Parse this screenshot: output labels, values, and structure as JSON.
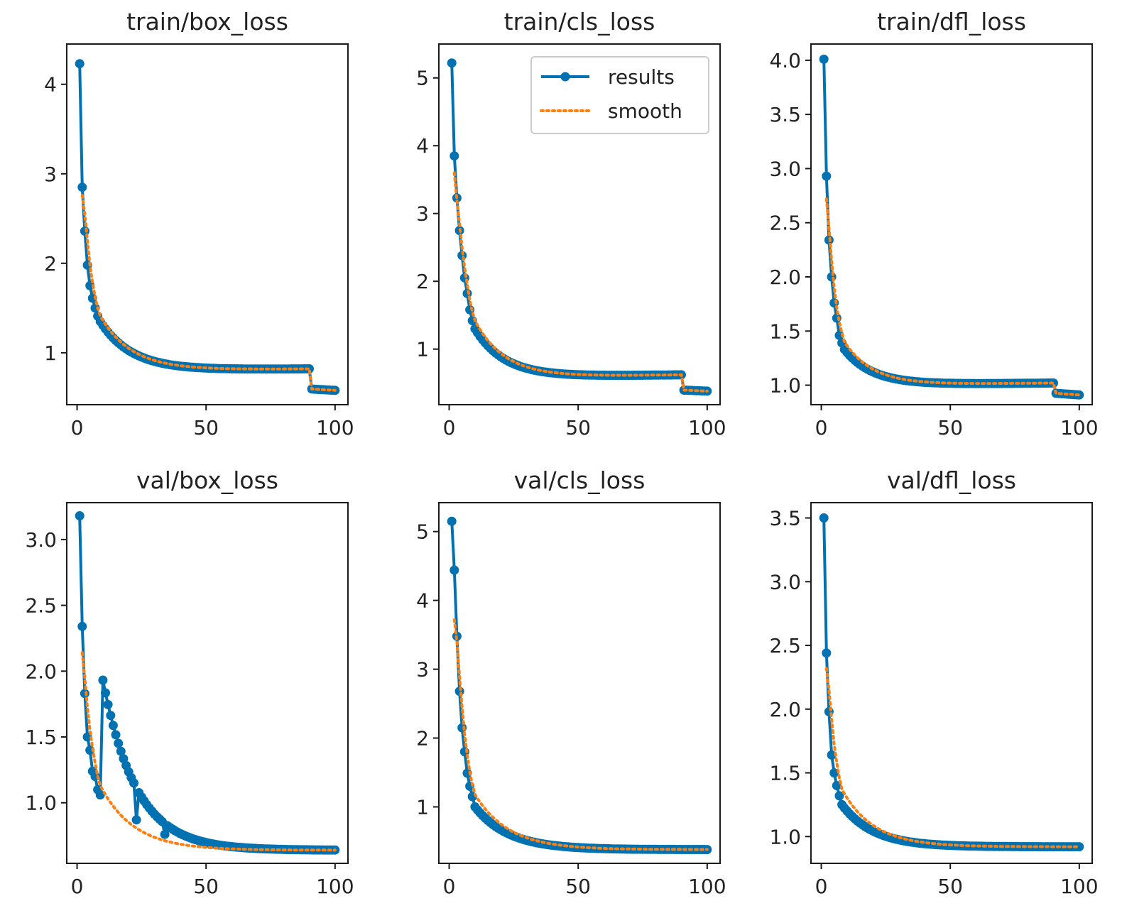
{
  "colors": {
    "results": "#0072b2",
    "smooth": "#ff7f0e"
  },
  "legend": {
    "labels": [
      "results",
      "smooth"
    ],
    "placement": "upper-right of train/cls_loss"
  },
  "chart_data": [
    {
      "type": "line",
      "title": "train/box_loss",
      "xlim": [
        -4,
        105
      ],
      "ylim": [
        0.42,
        4.45
      ],
      "xticks": [
        0,
        50,
        100
      ],
      "xtick_labels": [
        "0",
        "50",
        "100"
      ],
      "yticks": [
        1,
        2,
        3,
        4
      ],
      "ytick_labels": [
        "1",
        "2",
        "3",
        "4"
      ],
      "series": [
        {
          "name": "results",
          "x_start": 1,
          "x_end": 100,
          "start": 4.23,
          "end": 0.82,
          "plateau": 0.8,
          "k": 0.08,
          "drop_at": 91,
          "drop_to": 0.58,
          "anchors": [
            [
              1,
              4.23
            ],
            [
              2,
              2.85
            ],
            [
              3,
              2.36
            ],
            [
              4,
              1.98
            ],
            [
              5,
              1.75
            ],
            [
              6,
              1.61
            ],
            [
              7,
              1.5
            ],
            [
              8,
              1.41
            ],
            [
              9,
              1.35
            ]
          ]
        },
        {
          "name": "smooth",
          "x_start": 2,
          "x_end": 100,
          "start": 2.76,
          "end": 0.82,
          "plateau": 0.8,
          "k": 0.08,
          "drop_at": 91,
          "drop_to": 0.58,
          "anchors": [
            [
              2,
              2.76
            ],
            [
              3,
              2.55
            ],
            [
              4,
              2.25
            ],
            [
              5,
              1.98
            ],
            [
              6,
              1.78
            ],
            [
              7,
              1.62
            ],
            [
              8,
              1.5
            ],
            [
              9,
              1.41
            ]
          ]
        }
      ]
    },
    {
      "type": "line",
      "title": "train/cls_loss",
      "xlim": [
        -4,
        105
      ],
      "ylim": [
        0.18,
        5.5
      ],
      "xticks": [
        0,
        50,
        100
      ],
      "xtick_labels": [
        "0",
        "50",
        "100"
      ],
      "yticks": [
        1,
        2,
        3,
        4,
        5
      ],
      "ytick_labels": [
        "1",
        "2",
        "3",
        "4",
        "5"
      ],
      "series": [
        {
          "name": "results",
          "x_start": 1,
          "x_end": 100,
          "start": 5.22,
          "end": 0.62,
          "plateau": 0.58,
          "k": 0.085,
          "drop_at": 91,
          "drop_to": 0.38,
          "anchors": [
            [
              1,
              5.22
            ],
            [
              2,
              3.85
            ],
            [
              3,
              3.23
            ],
            [
              4,
              2.75
            ],
            [
              5,
              2.38
            ],
            [
              6,
              2.05
            ],
            [
              7,
              1.82
            ],
            [
              8,
              1.58
            ],
            [
              9,
              1.42
            ],
            [
              10,
              1.3
            ]
          ]
        },
        {
          "name": "smooth",
          "x_start": 2,
          "x_end": 100,
          "start": 3.6,
          "end": 0.62,
          "plateau": 0.58,
          "k": 0.085,
          "drop_at": 91,
          "drop_to": 0.38,
          "anchors": [
            [
              2,
              3.6
            ],
            [
              3,
              3.2
            ],
            [
              4,
              2.85
            ],
            [
              5,
              2.5
            ],
            [
              6,
              2.2
            ],
            [
              7,
              1.95
            ],
            [
              8,
              1.72
            ],
            [
              9,
              1.55
            ],
            [
              10,
              1.42
            ]
          ]
        }
      ]
    },
    {
      "type": "line",
      "title": "train/dfl_loss",
      "xlim": [
        -4,
        105
      ],
      "ylim": [
        0.82,
        4.15
      ],
      "xticks": [
        0,
        50,
        100
      ],
      "xtick_labels": [
        "0",
        "50",
        "100"
      ],
      "yticks": [
        1.0,
        1.5,
        2.0,
        2.5,
        3.0,
        3.5,
        4.0
      ],
      "ytick_labels": [
        "1.0",
        "1.5",
        "2.0",
        "2.5",
        "3.0",
        "3.5",
        "4.0"
      ],
      "series": [
        {
          "name": "results",
          "x_start": 1,
          "x_end": 100,
          "start": 4.01,
          "end": 1.02,
          "plateau": 1.0,
          "k": 0.09,
          "drop_at": 91,
          "drop_to": 0.91,
          "anchors": [
            [
              1,
              4.01
            ],
            [
              2,
              2.93
            ],
            [
              3,
              2.34
            ],
            [
              4,
              2.0
            ],
            [
              5,
              1.76
            ],
            [
              6,
              1.62
            ],
            [
              7,
              1.46
            ],
            [
              8,
              1.39
            ],
            [
              9,
              1.33
            ]
          ]
        },
        {
          "name": "smooth",
          "x_start": 2,
          "x_end": 100,
          "start": 2.72,
          "end": 1.02,
          "plateau": 1.0,
          "k": 0.09,
          "drop_at": 91,
          "drop_to": 0.91,
          "anchors": [
            [
              2,
              2.72
            ],
            [
              3,
              2.45
            ],
            [
              4,
              2.15
            ],
            [
              5,
              1.9
            ],
            [
              6,
              1.72
            ],
            [
              7,
              1.58
            ],
            [
              8,
              1.48
            ],
            [
              9,
              1.4
            ]
          ]
        }
      ]
    },
    {
      "type": "line",
      "title": "val/box_loss",
      "xlim": [
        -4,
        105
      ],
      "ylim": [
        0.54,
        3.28
      ],
      "xticks": [
        0,
        50,
        100
      ],
      "xtick_labels": [
        "0",
        "50",
        "100"
      ],
      "yticks": [
        1.0,
        1.5,
        2.0,
        2.5,
        3.0
      ],
      "ytick_labels": [
        "1.0",
        "1.5",
        "2.0",
        "2.5",
        "3.0"
      ],
      "series": [
        {
          "name": "results",
          "x_start": 1,
          "x_end": 100,
          "start": 3.18,
          "end": 0.64,
          "plateau": 0.64,
          "k": 0.075,
          "anchors": [
            [
              1,
              3.18
            ],
            [
              2,
              2.34
            ],
            [
              3,
              1.83
            ],
            [
              4,
              1.5
            ],
            [
              5,
              1.4
            ],
            [
              6,
              1.24
            ],
            [
              7,
              1.2
            ],
            [
              8,
              1.1
            ],
            [
              9,
              1.06
            ],
            [
              23,
              0.87
            ],
            [
              34,
              0.76
            ],
            [
              43,
              0.74
            ]
          ]
        },
        {
          "name": "smooth",
          "x_start": 2,
          "x_end": 100,
          "start": 2.14,
          "end": 0.64,
          "plateau": 0.64,
          "k": 0.075,
          "anchors": [
            [
              2,
              2.14
            ],
            [
              3,
              1.95
            ],
            [
              4,
              1.72
            ],
            [
              5,
              1.55
            ],
            [
              6,
              1.42
            ],
            [
              7,
              1.3
            ],
            [
              8,
              1.2
            ],
            [
              9,
              1.13
            ]
          ]
        }
      ]
    },
    {
      "type": "line",
      "title": "val/cls_loss",
      "xlim": [
        -4,
        105
      ],
      "ylim": [
        0.18,
        5.42
      ],
      "xticks": [
        0,
        50,
        100
      ],
      "xtick_labels": [
        "0",
        "50",
        "100"
      ],
      "yticks": [
        1,
        2,
        3,
        4,
        5
      ],
      "ytick_labels": [
        "1",
        "2",
        "3",
        "4",
        "5"
      ],
      "series": [
        {
          "name": "results",
          "x_start": 1,
          "x_end": 100,
          "start": 5.15,
          "end": 0.38,
          "plateau": 0.38,
          "k": 0.075,
          "anchors": [
            [
              1,
              5.15
            ],
            [
              2,
              4.44
            ],
            [
              3,
              3.48
            ],
            [
              4,
              2.68
            ],
            [
              5,
              2.15
            ],
            [
              6,
              1.8
            ],
            [
              7,
              1.49
            ],
            [
              8,
              1.3
            ],
            [
              9,
              1.15
            ],
            [
              10,
              1.0
            ]
          ]
        },
        {
          "name": "smooth",
          "x_start": 2,
          "x_end": 100,
          "start": 3.72,
          "end": 0.38,
          "plateau": 0.38,
          "k": 0.075,
          "anchors": [
            [
              2,
              3.72
            ],
            [
              3,
              3.4
            ],
            [
              4,
              2.9
            ],
            [
              5,
              2.45
            ],
            [
              6,
              2.05
            ],
            [
              7,
              1.75
            ],
            [
              8,
              1.5
            ],
            [
              9,
              1.32
            ],
            [
              10,
              1.18
            ]
          ]
        }
      ]
    },
    {
      "type": "line",
      "title": "val/dfl_loss",
      "xlim": [
        -4,
        105
      ],
      "ylim": [
        0.79,
        3.62
      ],
      "xticks": [
        0,
        50,
        100
      ],
      "xtick_labels": [
        "0",
        "50",
        "100"
      ],
      "yticks": [
        1.0,
        1.5,
        2.0,
        2.5,
        3.0,
        3.5
      ],
      "ytick_labels": [
        "1.0",
        "1.5",
        "2.0",
        "2.5",
        "3.0",
        "3.5"
      ],
      "series": [
        {
          "name": "results",
          "x_start": 1,
          "x_end": 100,
          "start": 3.5,
          "end": 0.92,
          "plateau": 0.92,
          "k": 0.08,
          "anchors": [
            [
              1,
              3.5
            ],
            [
              2,
              2.44
            ],
            [
              3,
              1.98
            ],
            [
              4,
              1.64
            ],
            [
              5,
              1.5
            ],
            [
              6,
              1.4
            ],
            [
              7,
              1.32
            ],
            [
              8,
              1.25
            ]
          ]
        },
        {
          "name": "smooth",
          "x_start": 2,
          "x_end": 100,
          "start": 2.32,
          "end": 0.92,
          "plateau": 0.92,
          "k": 0.08,
          "anchors": [
            [
              2,
              2.32
            ],
            [
              3,
              2.15
            ],
            [
              4,
              1.92
            ],
            [
              5,
              1.72
            ],
            [
              6,
              1.58
            ],
            [
              7,
              1.46
            ],
            [
              8,
              1.37
            ]
          ]
        }
      ]
    }
  ]
}
